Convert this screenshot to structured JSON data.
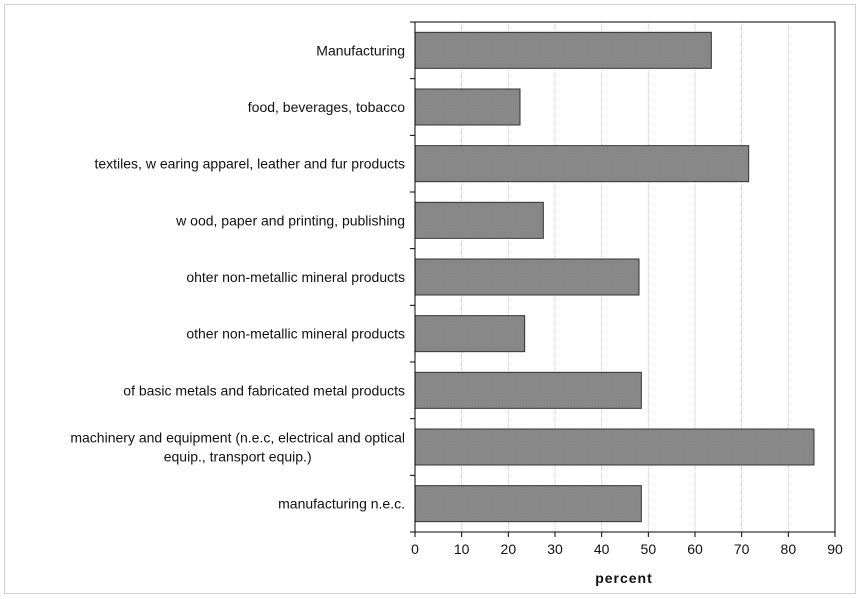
{
  "chart_data": {
    "type": "bar",
    "orientation": "horizontal",
    "title": "",
    "xlabel": "percent",
    "ylabel": "",
    "xlim": [
      0,
      90
    ],
    "xticks": [
      0,
      10,
      20,
      30,
      40,
      50,
      60,
      70,
      80,
      90
    ],
    "grid": "vertical",
    "legend": "none",
    "categories": [
      "Manufacturing",
      "food, beverages, tobacco",
      "textiles, w earing apparel, leather and fur products",
      "w ood, paper and printing, publishing",
      "ohter non-metallic mineral products",
      "other non-metallic mineral products",
      "of basic metals and fabricated metal products",
      "machinery and equipment (n.e.c, electrical and optical\nequip., transport equip.)",
      "manufacturing n.e.c."
    ],
    "values": [
      63.5,
      22.5,
      71.5,
      27.5,
      48,
      23.5,
      48.5,
      85.5,
      48.5
    ],
    "bar_color": "#8a8a8a",
    "bar_edge_color": "#333333",
    "grid_color": "#c8c8c8"
  }
}
